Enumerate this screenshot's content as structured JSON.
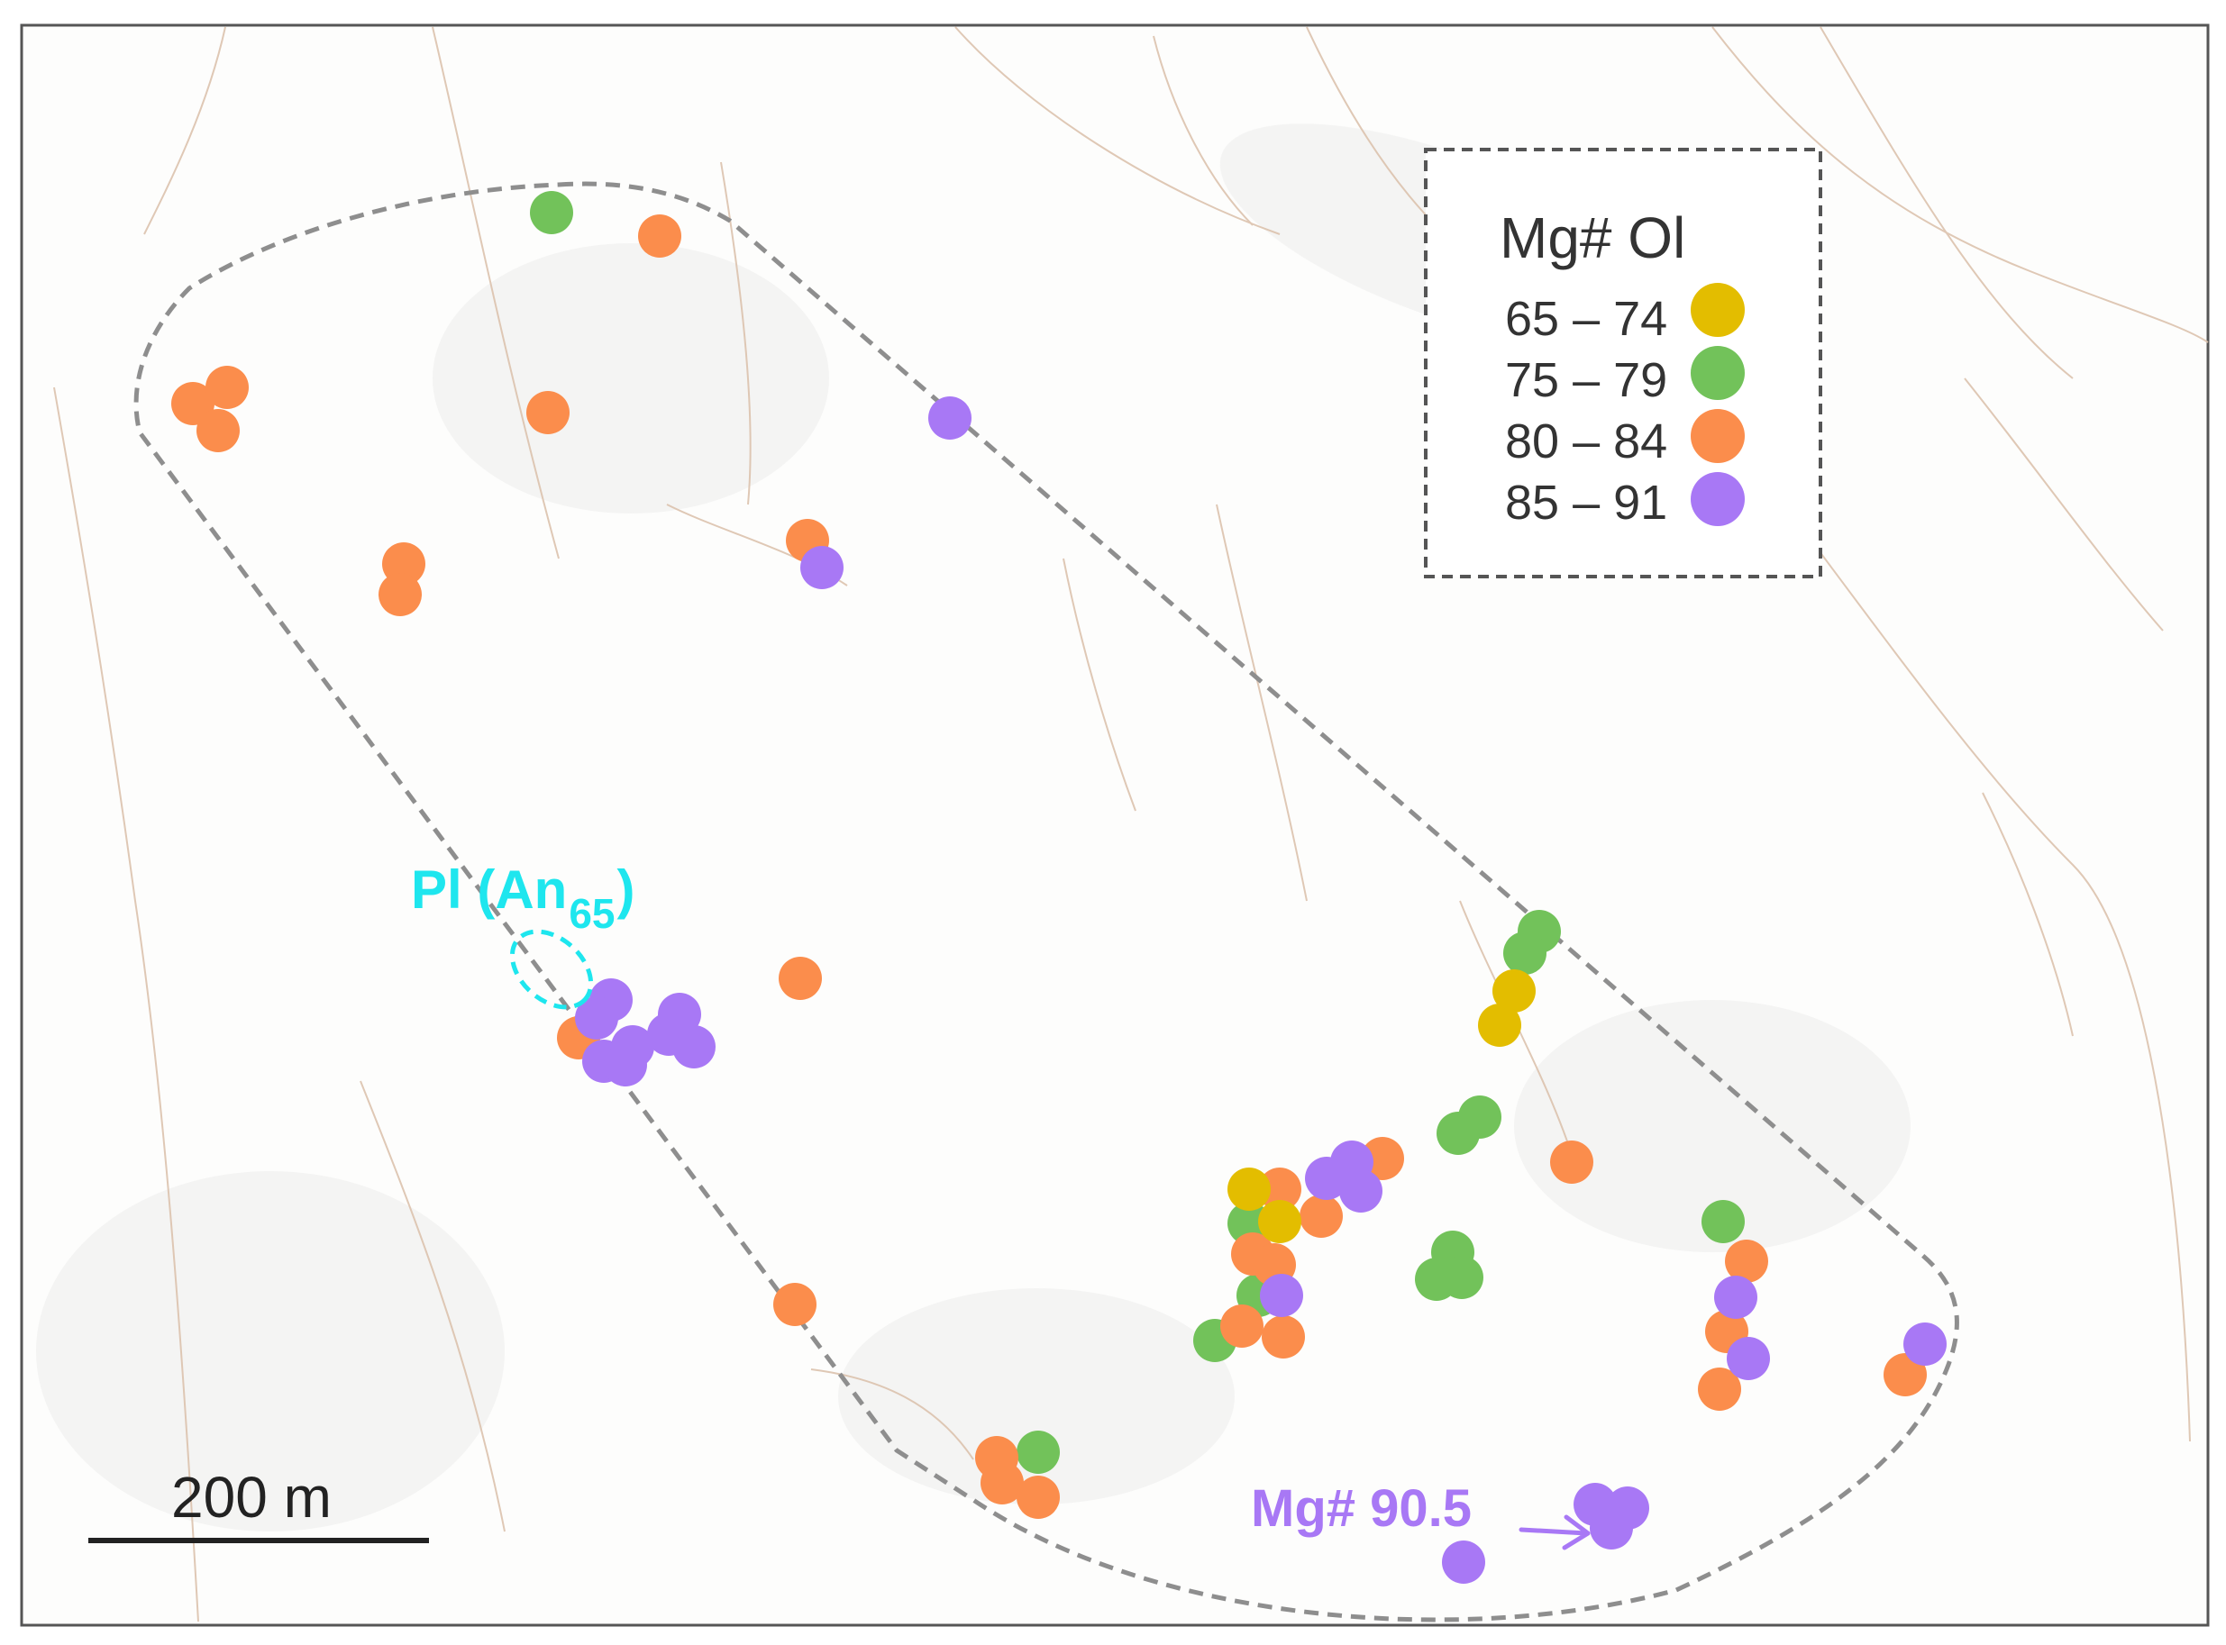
{
  "colors": {
    "yellow": "#e3bd00",
    "green": "#72c25a",
    "orange": "#fb8d4c",
    "purple": "#a878f5",
    "cyan": "#1ee6ee",
    "boundary": "#8e8e8e",
    "frame": "#555555",
    "contour": "#d9b8a0"
  },
  "legend": {
    "title": "Mg# Ol",
    "items": [
      {
        "label": "65 – 74",
        "color_key": "yellow"
      },
      {
        "label": "75 – 79",
        "color_key": "green"
      },
      {
        "label": "80 – 84",
        "color_key": "orange"
      },
      {
        "label": "85 – 91",
        "color_key": "purple"
      }
    ]
  },
  "scale_bar": {
    "label": "200 m"
  },
  "annotations": {
    "plagioclase": {
      "prefix": "Pl (An",
      "subscript": "65",
      "suffix": ")"
    },
    "max_mg": {
      "label": "Mg# 90.5"
    }
  }
}
